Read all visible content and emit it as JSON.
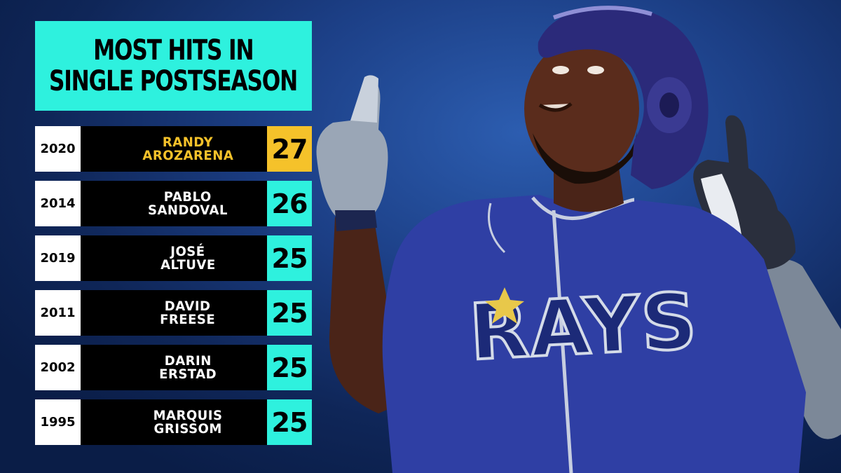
{
  "title": {
    "line1": "MOST HITS IN",
    "line2": "SINGLE POSTSEASON"
  },
  "colors": {
    "accent_teal": "#2ef1de",
    "highlight_gold": "#f5c22a",
    "background_navy": "#173a80"
  },
  "rows": [
    {
      "year": "2020",
      "first": "RANDY",
      "last": "AROZARENA",
      "hits": "27",
      "highlight": true
    },
    {
      "year": "2014",
      "first": "PABLO",
      "last": "SANDOVAL",
      "hits": "26",
      "highlight": false
    },
    {
      "year": "2019",
      "first": "JOSÉ",
      "last": "ALTUVE",
      "hits": "25",
      "highlight": false
    },
    {
      "year": "2011",
      "first": "DAVID",
      "last": "FREESE",
      "hits": "25",
      "highlight": false
    },
    {
      "year": "2002",
      "first": "DARIN",
      "last": "ERSTAD",
      "hits": "25",
      "highlight": false
    },
    {
      "year": "1995",
      "first": "MARQUIS",
      "last": "GRISSOM",
      "hits": "25",
      "highlight": false
    }
  ],
  "player_photo": {
    "jersey_text": "RAYS",
    "icon": "player-photo-icon"
  }
}
